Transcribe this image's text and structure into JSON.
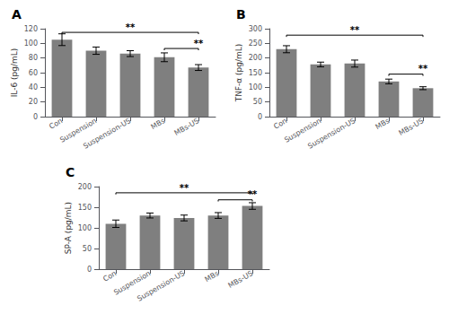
{
  "chart_data": [
    {
      "type": "bar",
      "title": "A",
      "ylabel": "IL-6 (pg/mL)",
      "categories": [
        "Con",
        "Suspension",
        "Suspension-US",
        "MBs",
        "MBs-US"
      ],
      "values": [
        105,
        90,
        86,
        81,
        67
      ],
      "errors": [
        8,
        5,
        4,
        6,
        4
      ],
      "color": "#7f7f7f",
      "ylim": [
        0,
        120
      ],
      "yticks": [
        0,
        20,
        40,
        60,
        80,
        100,
        120
      ],
      "grid": false,
      "annotations": [
        {
          "from": "Con",
          "to": "MBs-US",
          "y": 115,
          "label": "**"
        },
        {
          "from": "MBs",
          "to": "MBs-US",
          "y": 93,
          "label": "**"
        }
      ]
    },
    {
      "type": "bar",
      "title": "B",
      "ylabel": "TNF-α (pg/mL)",
      "categories": [
        "Con",
        "Suspension",
        "Suspension-US",
        "MBs",
        "MBs-US"
      ],
      "values": [
        230,
        178,
        181,
        120,
        97
      ],
      "errors": [
        12,
        8,
        12,
        8,
        5
      ],
      "color": "#7f7f7f",
      "ylim": [
        0,
        300
      ],
      "yticks": [
        0,
        50,
        100,
        150,
        200,
        250,
        300
      ],
      "grid": false,
      "annotations": [
        {
          "from": "Con",
          "to": "MBs-US",
          "y": 278,
          "label": "**"
        },
        {
          "from": "MBs",
          "to": "MBs-US",
          "y": 145,
          "label": "**"
        }
      ]
    },
    {
      "type": "bar",
      "title": "C",
      "ylabel": "SP-A (pg/mL)",
      "categories": [
        "Con",
        "Suspension",
        "Suspension-US",
        "MBs",
        "MBs-US"
      ],
      "values": [
        110,
        130,
        124,
        130,
        153
      ],
      "errors": [
        9,
        6,
        7,
        7,
        8
      ],
      "color": "#7f7f7f",
      "ylim": [
        0,
        200
      ],
      "yticks": [
        0,
        50,
        100,
        150,
        200
      ],
      "grid": false,
      "annotations": [
        {
          "from": "Con",
          "to": "MBs-US",
          "y": 185,
          "label": "**"
        },
        {
          "from": "MBs",
          "to": "MBs-US",
          "y": 168,
          "label": "**"
        }
      ]
    }
  ]
}
